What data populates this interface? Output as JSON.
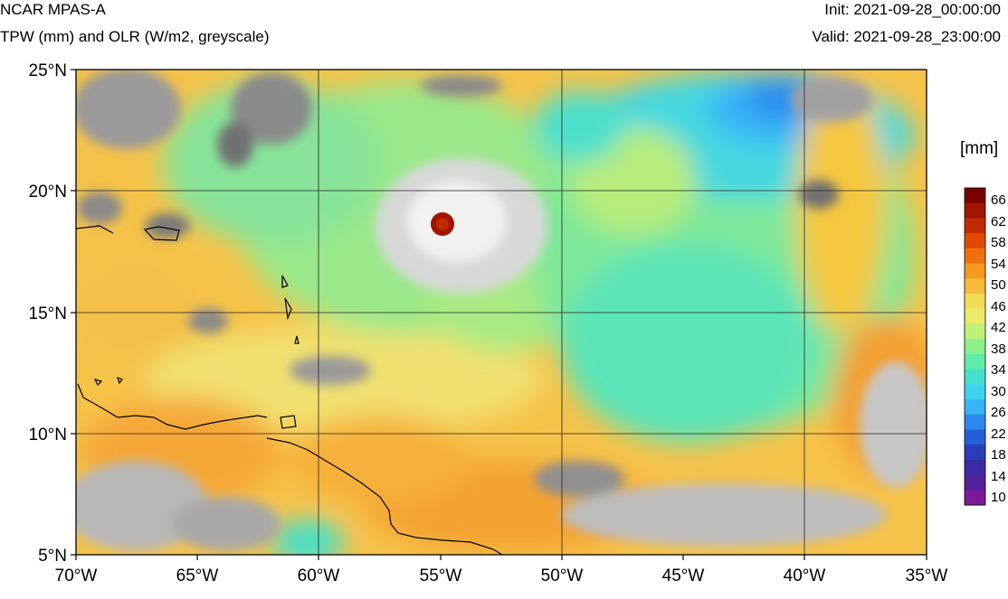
{
  "header": {
    "title": "NCAR MPAS-A",
    "subtitle": "TPW (mm) and OLR (W/m2, greyscale)",
    "init": "Init: 2021-09-28_00:00:00",
    "valid": "Valid: 2021-09-28_23:00:00"
  },
  "map": {
    "lat_labels": [
      "25°N",
      "20°N",
      "15°N",
      "10°N",
      "5°N"
    ],
    "lon_labels": [
      "70°W",
      "65°W",
      "60°W",
      "55°W",
      "50°W",
      "45°W",
      "40°W",
      "35°W"
    ],
    "lat_range": [
      5,
      25
    ],
    "lon_range": [
      -70,
      -35
    ]
  },
  "colorbar": {
    "unit": "[mm]",
    "labels": [
      "66",
      "62",
      "58",
      "54",
      "50",
      "46",
      "42",
      "38",
      "34",
      "30",
      "26",
      "22",
      "18",
      "14",
      "10"
    ],
    "colors": [
      "#7a0000",
      "#a01400",
      "#c02a00",
      "#e04a00",
      "#f07010",
      "#f59a20",
      "#f8bc3a",
      "#f5dc58",
      "#e8ec6a",
      "#bff07a",
      "#8ef08c",
      "#60ecaa",
      "#44e0cc",
      "#3ed2f0",
      "#38b4f6",
      "#2c88ee",
      "#245ed8",
      "#2a3cba",
      "#3a2aa6",
      "#52209a",
      "#7a1a96"
    ]
  }
}
